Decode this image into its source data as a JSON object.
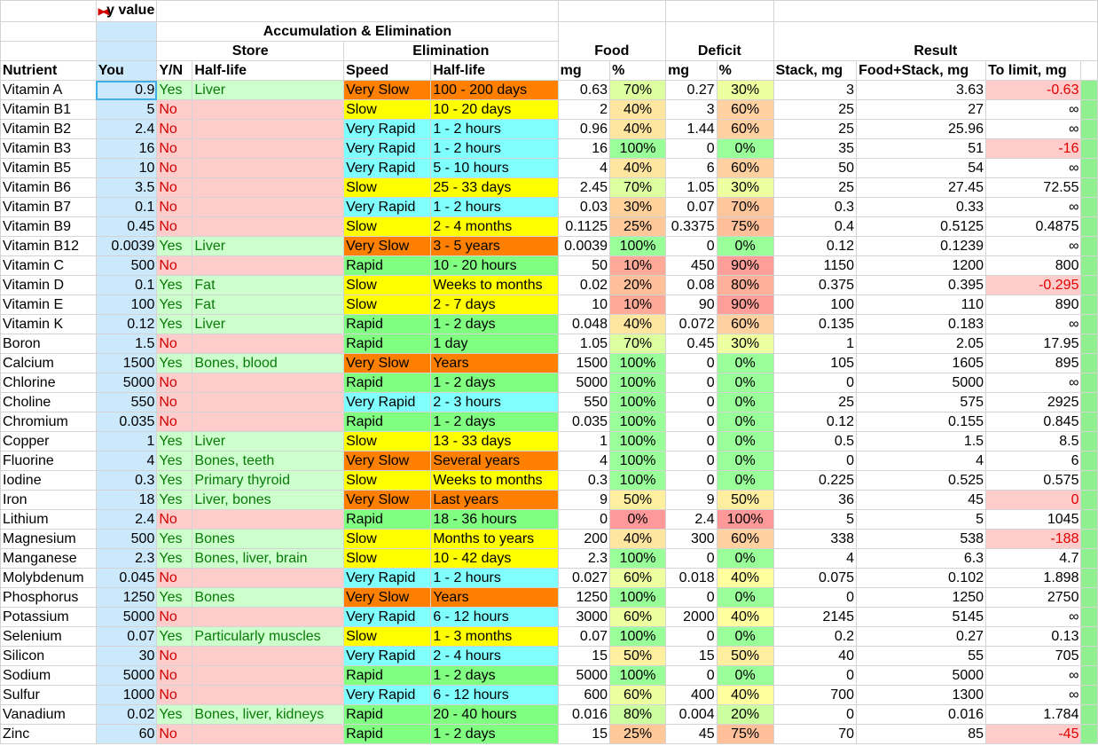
{
  "header": {
    "top_label": "y value",
    "group1": "Accumulation & Elimination",
    "store": "Store",
    "elimination": "Elimination",
    "food": "Food",
    "deficit": "Deficit",
    "result": "Result",
    "cols": [
      "Nutrient",
      "You",
      "Y/N",
      "Half-life",
      "Speed",
      "Half-life",
      "mg",
      "%",
      "mg",
      "%",
      "Stack, mg",
      "Food+Stack, mg",
      "To limit, mg"
    ]
  },
  "colors": {
    "very_slow": "#ff8000",
    "slow": "#ffff00",
    "rapid": "#80ff80",
    "very_rapid": "#80ffff"
  },
  "rows": [
    [
      "Vitamin A",
      "0.9",
      "Yes",
      "Liver",
      "Very Slow",
      "100 - 200 days",
      "0.63",
      "70%",
      "0.27",
      "30%",
      "3",
      "3.63",
      "-0.63"
    ],
    [
      "Vitamin B1",
      "5",
      "No",
      "",
      "Slow",
      "10 - 20 days",
      "2",
      "40%",
      "3",
      "60%",
      "25",
      "27",
      "∞"
    ],
    [
      "Vitamin B2",
      "2.4",
      "No",
      "",
      "Very Rapid",
      "1 - 2 hours",
      "0.96",
      "40%",
      "1.44",
      "60%",
      "25",
      "25.96",
      "∞"
    ],
    [
      "Vitamin B3",
      "16",
      "No",
      "",
      "Very Rapid",
      "1 - 2 hours",
      "16",
      "100%",
      "0",
      "0%",
      "35",
      "51",
      "-16"
    ],
    [
      "Vitamin B5",
      "10",
      "No",
      "",
      "Very Rapid",
      "5 - 10 hours",
      "4",
      "40%",
      "6",
      "60%",
      "50",
      "54",
      "∞"
    ],
    [
      "Vitamin B6",
      "3.5",
      "No",
      "",
      "Slow",
      "25 - 33 days",
      "2.45",
      "70%",
      "1.05",
      "30%",
      "25",
      "27.45",
      "72.55"
    ],
    [
      "Vitamin B7",
      "0.1",
      "No",
      "",
      "Very Rapid",
      "1 - 2 hours",
      "0.03",
      "30%",
      "0.07",
      "70%",
      "0.3",
      "0.33",
      "∞"
    ],
    [
      "Vitamin B9",
      "0.45",
      "No",
      "",
      "Slow",
      "2 - 4 months",
      "0.1125",
      "25%",
      "0.3375",
      "75%",
      "0.4",
      "0.5125",
      "0.4875"
    ],
    [
      "Vitamin B12",
      "0.0039",
      "Yes",
      "Liver",
      "Very Slow",
      "3 - 5 years",
      "0.0039",
      "100%",
      "0",
      "0%",
      "0.12",
      "0.1239",
      "∞"
    ],
    [
      "Vitamin C",
      "500",
      "No",
      "",
      "Rapid",
      "10 - 20 hours",
      "50",
      "10%",
      "450",
      "90%",
      "1150",
      "1200",
      "800"
    ],
    [
      "Vitamin D",
      "0.1",
      "Yes",
      "Fat",
      "Slow",
      "Weeks to months",
      "0.02",
      "20%",
      "0.08",
      "80%",
      "0.375",
      "0.395",
      "-0.295"
    ],
    [
      "Vitamin E",
      "100",
      "Yes",
      "Fat",
      "Slow",
      "2 - 7 days",
      "10",
      "10%",
      "90",
      "90%",
      "100",
      "110",
      "890"
    ],
    [
      "Vitamin K",
      "0.12",
      "Yes",
      "Liver",
      "Rapid",
      "1 - 2 days",
      "0.048",
      "40%",
      "0.072",
      "60%",
      "0.135",
      "0.183",
      "∞"
    ],
    [
      "Boron",
      "1.5",
      "No",
      "",
      "Rapid",
      "1 day",
      "1.05",
      "70%",
      "0.45",
      "30%",
      "1",
      "2.05",
      "17.95"
    ],
    [
      "Calcium",
      "1500",
      "Yes",
      "Bones, blood",
      "Very Slow",
      "Years",
      "1500",
      "100%",
      "0",
      "0%",
      "105",
      "1605",
      "895"
    ],
    [
      "Chlorine",
      "5000",
      "No",
      "",
      "Rapid",
      "1 - 2 days",
      "5000",
      "100%",
      "0",
      "0%",
      "0",
      "5000",
      "∞"
    ],
    [
      "Choline",
      "550",
      "No",
      "",
      "Very Rapid",
      "2 - 3 hours",
      "550",
      "100%",
      "0",
      "0%",
      "25",
      "575",
      "2925"
    ],
    [
      "Chromium",
      "0.035",
      "No",
      "",
      "Rapid",
      "1 - 2 days",
      "0.035",
      "100%",
      "0",
      "0%",
      "0.12",
      "0.155",
      "0.845"
    ],
    [
      "Copper",
      "1",
      "Yes",
      "Liver",
      "Slow",
      "13 - 33 days",
      "1",
      "100%",
      "0",
      "0%",
      "0.5",
      "1.5",
      "8.5"
    ],
    [
      "Fluorine",
      "4",
      "Yes",
      "Bones, teeth",
      "Very Slow",
      "Several years",
      "4",
      "100%",
      "0",
      "0%",
      "0",
      "4",
      "6"
    ],
    [
      "Iodine",
      "0.3",
      "Yes",
      "Primary thyroid",
      "Slow",
      "Weeks to months",
      "0.3",
      "100%",
      "0",
      "0%",
      "0.225",
      "0.525",
      "0.575"
    ],
    [
      "Iron",
      "18",
      "Yes",
      "Liver, bones",
      "Very Slow",
      "Last years",
      "9",
      "50%",
      "9",
      "50%",
      "36",
      "45",
      "0"
    ],
    [
      "Lithium",
      "2.4",
      "No",
      "",
      "Rapid",
      "18 - 36 hours",
      "0",
      "0%",
      "2.4",
      "100%",
      "5",
      "5",
      "1045"
    ],
    [
      "Magnesium",
      "500",
      "Yes",
      "Bones",
      "Slow",
      "Months to years",
      "200",
      "40%",
      "300",
      "60%",
      "338",
      "538",
      "-188"
    ],
    [
      "Manganese",
      "2.3",
      "Yes",
      "Bones, liver, brain",
      "Slow",
      "10 - 42 days",
      "2.3",
      "100%",
      "0",
      "0%",
      "4",
      "6.3",
      "4.7"
    ],
    [
      "Molybdenum",
      "0.045",
      "No",
      "",
      "Very Rapid",
      "1 - 2 hours",
      "0.027",
      "60%",
      "0.018",
      "40%",
      "0.075",
      "0.102",
      "1.898"
    ],
    [
      "Phosphorus",
      "1250",
      "Yes",
      "Bones",
      "Very Slow",
      "Years",
      "1250",
      "100%",
      "0",
      "0%",
      "0",
      "1250",
      "2750"
    ],
    [
      "Potassium",
      "5000",
      "No",
      "",
      "Very Rapid",
      "6 - 12 hours",
      "3000",
      "60%",
      "2000",
      "40%",
      "2145",
      "5145",
      "∞"
    ],
    [
      "Selenium",
      "0.07",
      "Yes",
      "Particularly muscles",
      "Slow",
      "1 - 3 months",
      "0.07",
      "100%",
      "0",
      "0%",
      "0.2",
      "0.27",
      "0.13"
    ],
    [
      "Silicon",
      "30",
      "No",
      "",
      "Very Rapid",
      "2 - 4 hours",
      "15",
      "50%",
      "15",
      "50%",
      "40",
      "55",
      "705"
    ],
    [
      "Sodium",
      "5000",
      "No",
      "",
      "Rapid",
      "1 - 2 days",
      "5000",
      "100%",
      "0",
      "0%",
      "0",
      "5000",
      "∞"
    ],
    [
      "Sulfur",
      "1000",
      "No",
      "",
      "Very Rapid",
      "6 - 12 hours",
      "600",
      "60%",
      "400",
      "40%",
      "700",
      "1300",
      "∞"
    ],
    [
      "Vanadium",
      "0.02",
      "Yes",
      "Bones, liver, kidneys",
      "Rapid",
      "20 - 40 hours",
      "0.016",
      "80%",
      "0.004",
      "20%",
      "0",
      "0.016",
      "1.784"
    ],
    [
      "Zinc",
      "60",
      "No",
      "",
      "Rapid",
      "1 - 2 days",
      "15",
      "25%",
      "45",
      "75%",
      "70",
      "85",
      "-45"
    ]
  ]
}
